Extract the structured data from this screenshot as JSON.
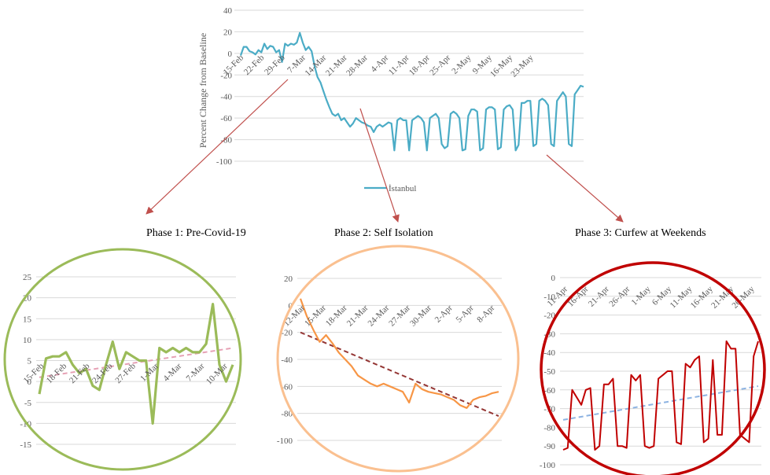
{
  "phase_titles": [
    "Phase 1: Pre-Covid-19",
    "Phase 2: Self Isolation",
    "Phase 3: Curfew at Weekends"
  ],
  "colors": {
    "main_line": "#4bacc6",
    "phase1_line": "#9bbb59",
    "phase1_trend": "#e6a0b4",
    "phase1_ellipse": "#9bbb59",
    "phase2_line": "#f79646",
    "phase2_trend": "#943634",
    "phase2_ellipse": "#fac090",
    "phase3_line": "#c00000",
    "phase3_trend": "#8db3e2",
    "phase3_ellipse": "#c00000",
    "arrow": "#c0504d",
    "grid": "#d9d9d9"
  },
  "chart_data": [
    {
      "id": "main",
      "type": "line",
      "ylabel": "Percent Change from Baseline",
      "ylim": [
        -100,
        40
      ],
      "yticks": [
        40,
        20,
        0,
        -20,
        -40,
        -60,
        -80,
        -100
      ],
      "x_tick_labels": [
        "15-Feb",
        "22-Feb",
        "29-Feb",
        "7-Mar",
        "14-Mar",
        "21-Mar",
        "28-Mar",
        "4-Apr",
        "11-Apr",
        "18-Apr",
        "25-Apr",
        "2-May",
        "9-May",
        "16-May",
        "23-May"
      ],
      "legend": "İstanbul",
      "legend_position": "bottom",
      "grid": true,
      "series": [
        {
          "name": "İstanbul",
          "values": [
            -2,
            6,
            6,
            2,
            1,
            -1,
            3,
            1,
            9,
            4,
            7,
            6,
            1,
            3,
            -8,
            9,
            7,
            9,
            8,
            10,
            19,
            10,
            3,
            6,
            2,
            -12,
            -22,
            -27,
            -35,
            -43,
            -50,
            -56,
            -58,
            -56,
            -62,
            -60,
            -64,
            -68,
            -65,
            -60,
            -62,
            -64,
            -65,
            -67,
            -68,
            -73,
            -68,
            -66,
            -68,
            -66,
            -64,
            -65,
            -90,
            -62,
            -60,
            -62,
            -62,
            -90,
            -62,
            -60,
            -58,
            -60,
            -64,
            -90,
            -60,
            -58,
            -56,
            -60,
            -84,
            -88,
            -86,
            -56,
            -54,
            -56,
            -60,
            -90,
            -89,
            -58,
            -52,
            -52,
            -54,
            -90,
            -88,
            -52,
            -50,
            -50,
            -52,
            -89,
            -87,
            -52,
            -49,
            -48,
            -52,
            -90,
            -85,
            -46,
            -46,
            -44,
            -44,
            -86,
            -84,
            -44,
            -42,
            -44,
            -48,
            -84,
            -86,
            -44,
            -40,
            -36,
            -40,
            -84,
            -86,
            -38,
            -34,
            -30,
            -31
          ]
        }
      ]
    },
    {
      "id": "phase1",
      "type": "line",
      "ylim": [
        -15,
        25
      ],
      "yticks": [
        25,
        20,
        15,
        10,
        5,
        0,
        -5,
        -10,
        -15
      ],
      "x_tick_labels": [
        "15-Feb",
        "18-Feb",
        "21-Feb",
        "24-Feb",
        "27-Feb",
        "1-Mar",
        "4-Mar",
        "7-Mar",
        "10-Mar"
      ],
      "x_start_day": 15,
      "series": [
        {
          "name": "İstanbul",
          "values": [
            -3,
            5.5,
            6,
            6,
            7,
            4,
            2,
            3,
            -1,
            -2,
            4,
            9.5,
            3,
            7,
            6,
            5,
            5,
            -10,
            8,
            7,
            8,
            7,
            8,
            7,
            7,
            9,
            18.5,
            4,
            0,
            4
          ]
        }
      ],
      "trendline": [
        1,
        8
      ]
    },
    {
      "id": "phase2",
      "type": "line",
      "ylim": [
        -100,
        20
      ],
      "yticks": [
        20,
        0,
        -20,
        -40,
        -60,
        -80,
        -100
      ],
      "x_tick_labels": [
        "12-Mar",
        "15-Mar",
        "18-Mar",
        "21-Mar",
        "24-Mar",
        "27-Mar",
        "30-Mar",
        "2-Apr",
        "5-Apr",
        "8-Apr"
      ],
      "series": [
        {
          "name": "İstanbul",
          "values": [
            5,
            -8,
            -18,
            -27,
            -22,
            -28,
            -35,
            -40,
            -45,
            -52,
            -55,
            -58,
            -60,
            -58,
            -60,
            -62,
            -64,
            -72,
            -58,
            -62,
            -64,
            -65,
            -66,
            -68,
            -70,
            -74,
            -76,
            -70,
            -68,
            -67,
            -65,
            -64
          ]
        }
      ],
      "trendline": [
        -20,
        -82
      ]
    },
    {
      "id": "phase3",
      "type": "line",
      "ylim": [
        -100,
        0
      ],
      "yticks": [
        0,
        -10,
        -20,
        -30,
        -40,
        -50,
        -60,
        -70,
        -80,
        -90,
        -100
      ],
      "x_tick_labels": [
        "11-Apr",
        "16-Apr",
        "21-Apr",
        "26-Apr",
        "1-May",
        "6-May",
        "11-May",
        "16-May",
        "21-May",
        "26-May"
      ],
      "series": [
        {
          "name": "İstanbul",
          "values": [
            -92,
            -91,
            -60,
            -64,
            -68,
            -60,
            -59,
            -92,
            -90,
            -57,
            -57,
            -54,
            -90,
            -90,
            -91,
            -52,
            -55,
            -52,
            -90,
            -91,
            -90,
            -54,
            -52,
            -50,
            -50,
            -88,
            -89,
            -46,
            -48,
            -44,
            -42,
            -88,
            -86,
            -44,
            -84,
            -84,
            -34,
            -38,
            -38,
            -84,
            -86,
            -88,
            -42,
            -34
          ]
        }
      ],
      "trendline": [
        -76,
        -58
      ]
    }
  ]
}
